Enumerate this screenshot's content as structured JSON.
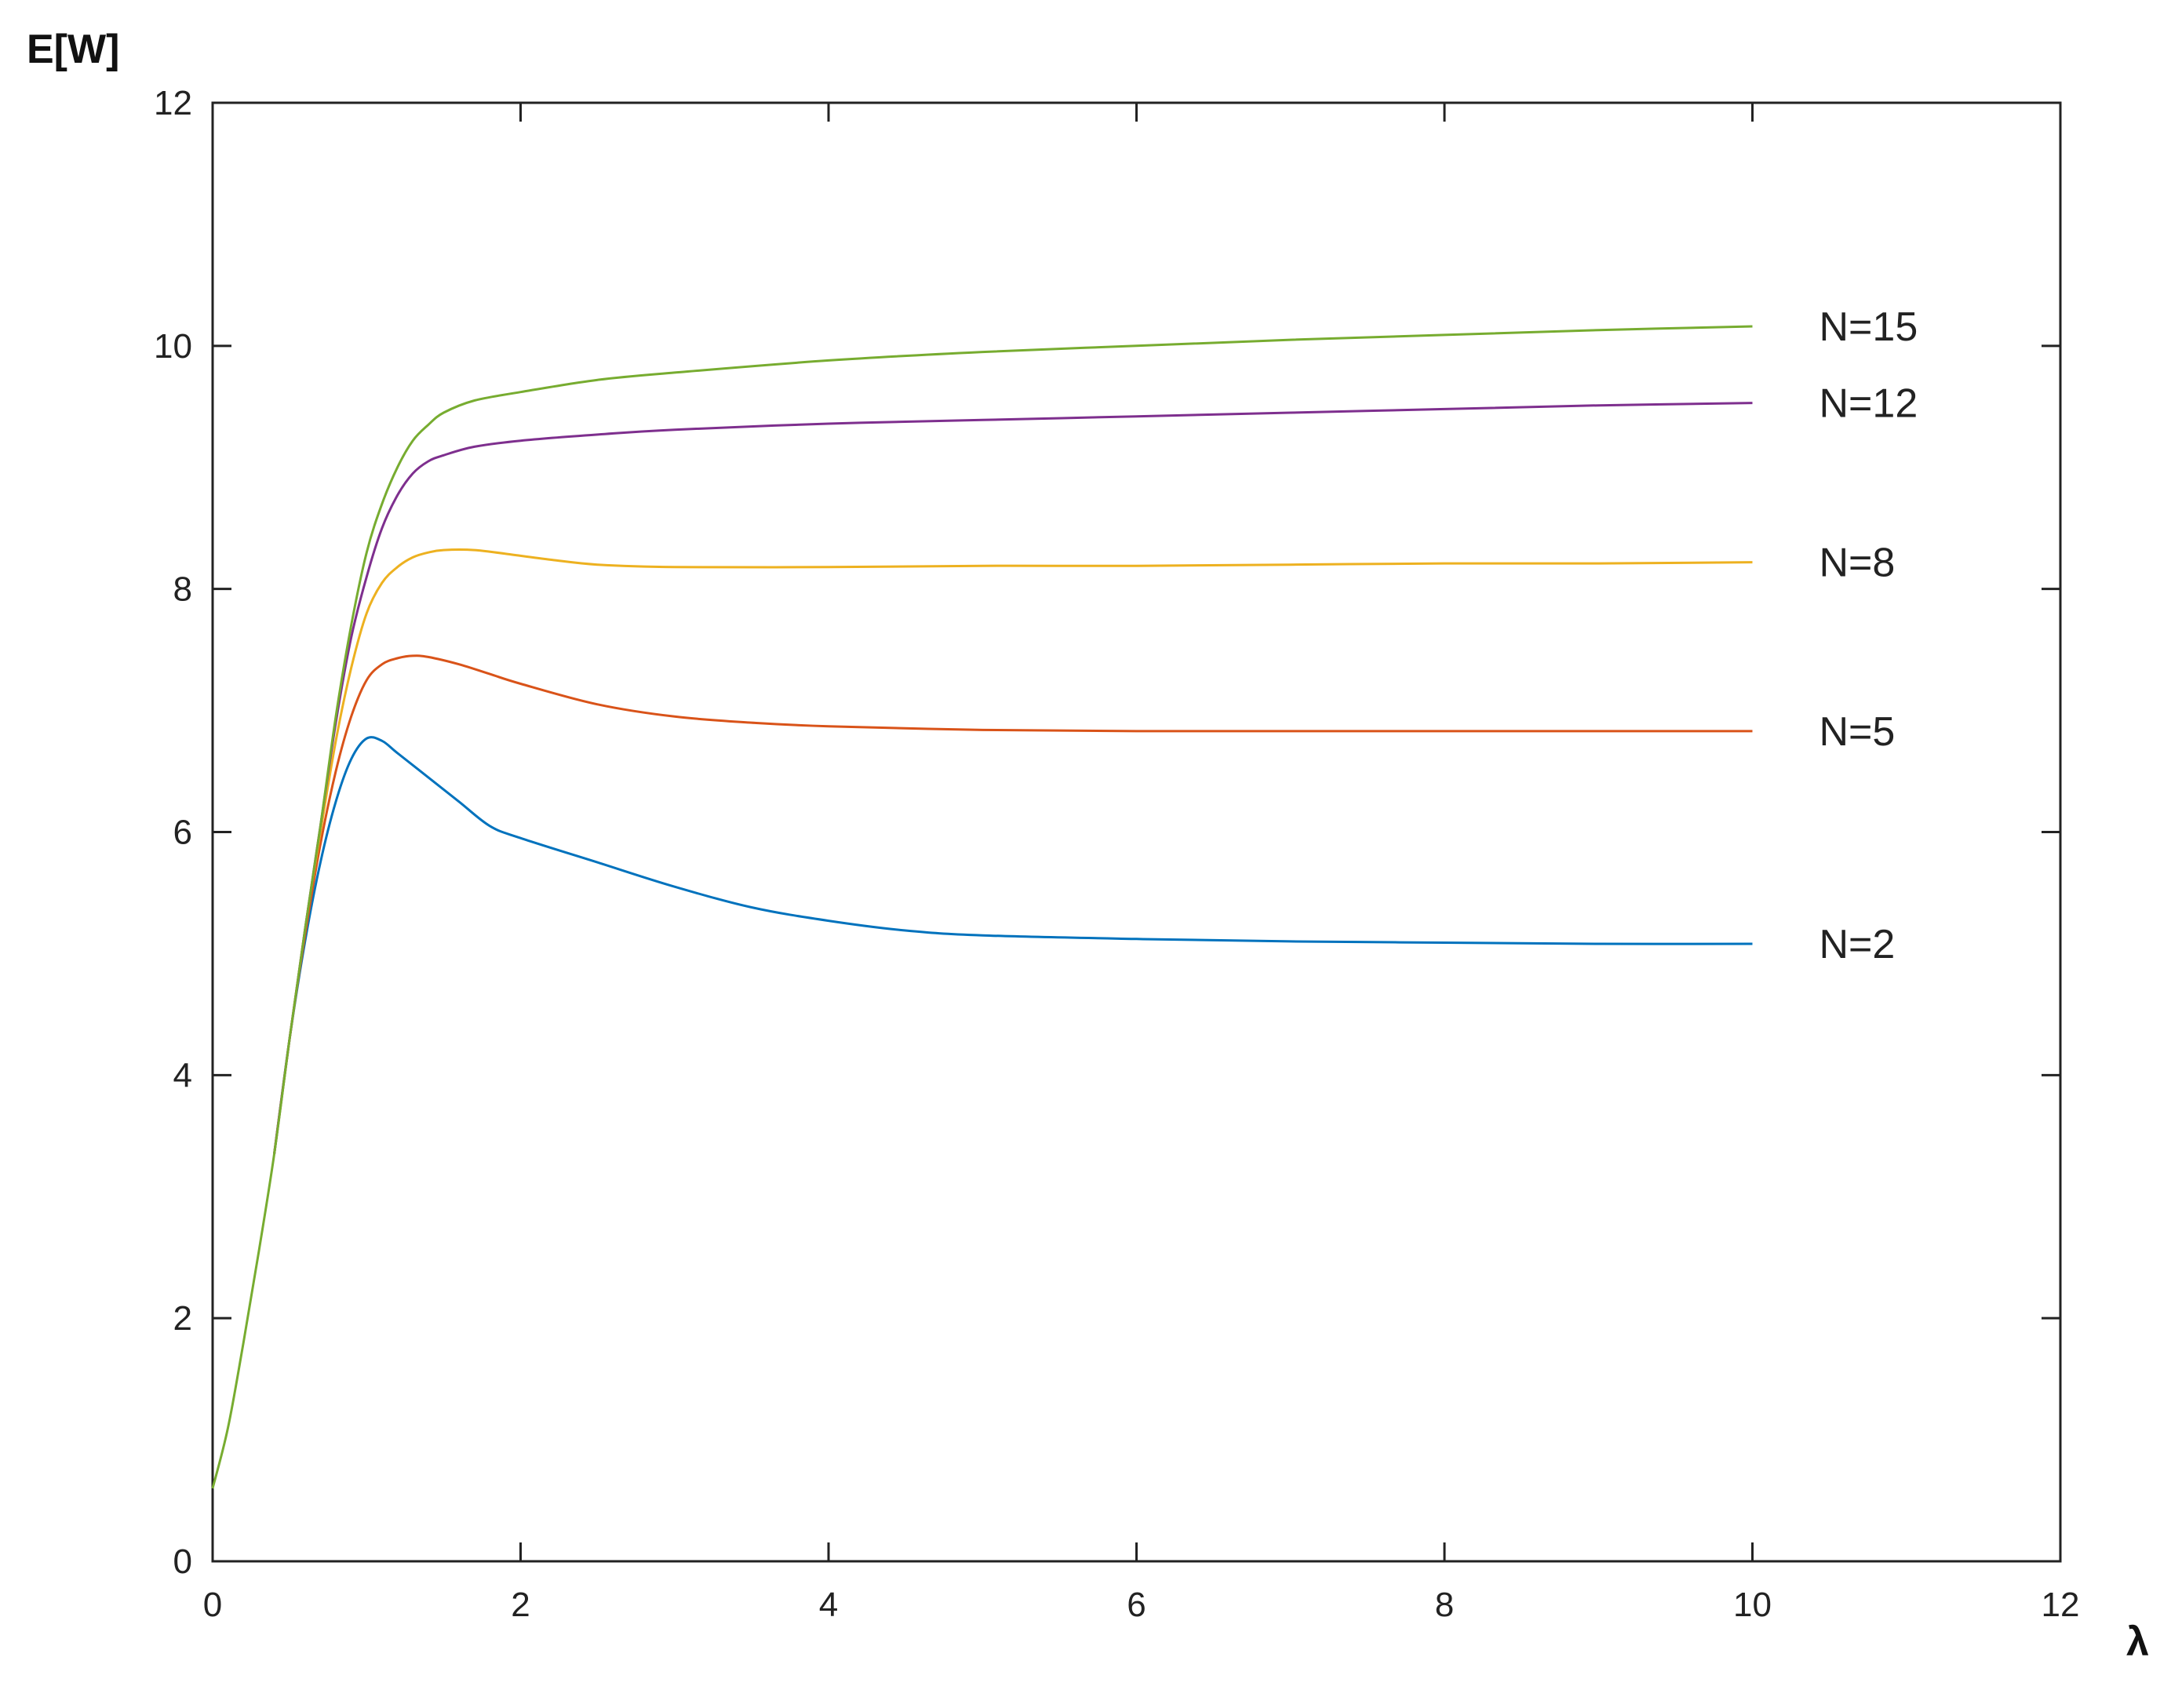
{
  "chart_data": {
    "type": "line",
    "title": "",
    "xlabel": "λ",
    "ylabel": "E[W]",
    "xlim": [
      0,
      12
    ],
    "ylim": [
      0,
      12
    ],
    "xticks": [
      0,
      2,
      4,
      6,
      8,
      10,
      12
    ],
    "yticks": [
      0,
      2,
      4,
      6,
      8,
      10,
      12
    ],
    "grid": false,
    "legend": "labels at right end of each line",
    "series": [
      {
        "name": "N=2",
        "color": "#0072BD",
        "x": [
          0.4,
          0.5,
          0.6,
          0.7,
          0.8,
          0.9,
          1.0,
          1.1,
          1.2,
          1.4,
          1.6,
          1.8,
          2.0,
          2.5,
          3.0,
          3.5,
          4.0,
          4.5,
          5.0,
          6.0,
          7.0,
          8.0,
          9.0,
          10.0
        ],
        "y": [
          3.35,
          4.3,
          5.1,
          5.75,
          6.25,
          6.6,
          6.77,
          6.75,
          6.65,
          6.45,
          6.25,
          6.05,
          5.95,
          5.75,
          5.55,
          5.38,
          5.27,
          5.19,
          5.15,
          5.12,
          5.1,
          5.09,
          5.08,
          5.08
        ]
      },
      {
        "name": "N=5",
        "color": "#D95319",
        "x": [
          0.4,
          0.5,
          0.6,
          0.7,
          0.8,
          0.9,
          1.0,
          1.1,
          1.2,
          1.3,
          1.4,
          1.6,
          1.8,
          2.0,
          2.5,
          3.0,
          3.5,
          4.0,
          5.0,
          6.0,
          7.0,
          8.0,
          9.0,
          10.0
        ],
        "y": [
          3.35,
          4.3,
          5.15,
          5.9,
          6.5,
          6.95,
          7.25,
          7.38,
          7.43,
          7.45,
          7.44,
          7.38,
          7.3,
          7.22,
          7.05,
          6.95,
          6.9,
          6.87,
          6.84,
          6.83,
          6.83,
          6.83,
          6.83,
          6.83
        ]
      },
      {
        "name": "N=8",
        "color": "#EDB120",
        "x": [
          0.4,
          0.5,
          0.6,
          0.7,
          0.8,
          0.9,
          1.0,
          1.1,
          1.2,
          1.3,
          1.4,
          1.5,
          1.7,
          1.9,
          2.2,
          2.5,
          3.0,
          4.0,
          5.0,
          6.0,
          7.0,
          8.0,
          9.0,
          10.0
        ],
        "y": [
          3.35,
          4.3,
          5.2,
          6.0,
          6.75,
          7.35,
          7.8,
          8.05,
          8.18,
          8.26,
          8.3,
          8.32,
          8.32,
          8.29,
          8.24,
          8.2,
          8.18,
          8.18,
          8.19,
          8.19,
          8.2,
          8.21,
          8.21,
          8.22
        ]
      },
      {
        "name": "N=12",
        "color": "#7E2F8E",
        "x": [
          0.4,
          0.5,
          0.6,
          0.7,
          0.8,
          0.9,
          1.0,
          1.1,
          1.2,
          1.3,
          1.4,
          1.5,
          1.7,
          2.0,
          2.5,
          3.0,
          4.0,
          5.0,
          6.0,
          7.0,
          8.0,
          9.0,
          10.0
        ],
        "y": [
          3.35,
          4.3,
          5.2,
          6.05,
          6.9,
          7.6,
          8.1,
          8.5,
          8.77,
          8.95,
          9.05,
          9.1,
          9.17,
          9.22,
          9.27,
          9.31,
          9.36,
          9.39,
          9.42,
          9.45,
          9.48,
          9.51,
          9.53
        ]
      },
      {
        "name": "N=15",
        "color": "#77AC30",
        "x": [
          0.0,
          0.1,
          0.2,
          0.3,
          0.4,
          0.5,
          0.6,
          0.7,
          0.8,
          0.9,
          1.0,
          1.1,
          1.2,
          1.3,
          1.4,
          1.5,
          1.7,
          2.0,
          2.5,
          3.0,
          4.0,
          5.0,
          6.0,
          7.0,
          8.0,
          9.0,
          10.0
        ],
        "y": [
          0.6,
          1.1,
          1.8,
          2.55,
          3.35,
          4.3,
          5.2,
          6.05,
          6.95,
          7.7,
          8.3,
          8.7,
          9.0,
          9.22,
          9.35,
          9.45,
          9.55,
          9.62,
          9.72,
          9.78,
          9.88,
          9.95,
          10.0,
          10.05,
          10.09,
          10.13,
          10.16
        ]
      }
    ]
  }
}
